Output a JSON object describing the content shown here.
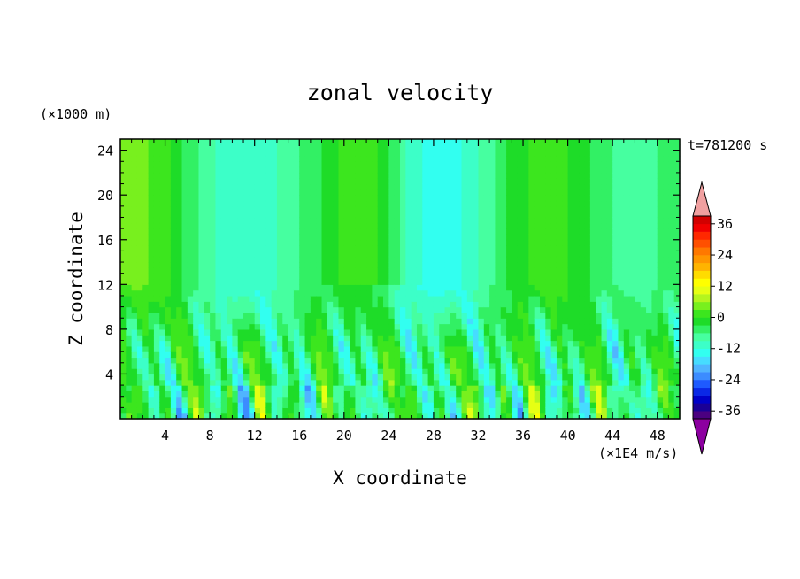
{
  "figure": {
    "title": "zonal velocity",
    "time_label": "t=781200 s",
    "z_unit": "(×1000 m)",
    "x_unit": "(×1E4 m/s)"
  },
  "chart_data": {
    "type": "heatmap",
    "title": "zonal velocity",
    "xlabel": "X coordinate",
    "ylabel": "Z coordinate",
    "x_ticks": [
      4,
      8,
      12,
      16,
      20,
      24,
      28,
      32,
      36,
      40,
      44,
      48
    ],
    "y_ticks": [
      4,
      8,
      12,
      16,
      20,
      24
    ],
    "xlim": [
      0,
      50
    ],
    "ylim": [
      0,
      25
    ],
    "colorbar": {
      "levels": [
        -42,
        -39,
        -36,
        -33,
        -30,
        -27,
        -24,
        -21,
        -18,
        -15,
        -12,
        -9,
        -6,
        -3,
        0,
        3,
        6,
        9,
        12,
        15,
        18,
        21,
        24,
        27,
        30,
        33,
        36,
        39,
        42
      ],
      "tick_labels": [
        "36",
        "24",
        "12",
        "0",
        "-12",
        "-24",
        "-36"
      ],
      "tick_values": [
        36,
        24,
        12,
        0,
        -12,
        -24,
        -36
      ],
      "colors": [
        "#4b0080",
        "#1a0096",
        "#0000c8",
        "#0a28e6",
        "#1e5aff",
        "#3c8cff",
        "#50b4ff",
        "#46dcff",
        "#32fff0",
        "#3cffc8",
        "#46ffa0",
        "#32f064",
        "#1edc28",
        "#3ce61e",
        "#78f01e",
        "#b4f51e",
        "#e6ff14",
        "#ffff00",
        "#ffdc00",
        "#ffb400",
        "#ff9600",
        "#ff7800",
        "#ff5000",
        "#ff2800",
        "#f00000",
        "#d20000"
      ],
      "under_color": "#8c00a0",
      "over_color": "#f0a0a0"
    },
    "value_range": [
      -24,
      15
    ],
    "description_values": {
      "upper_layer_mean": "approximately -9 to 6 (teal to yellow bands)",
      "lower_layer": "alternating cells from about -24 to 12"
    }
  }
}
